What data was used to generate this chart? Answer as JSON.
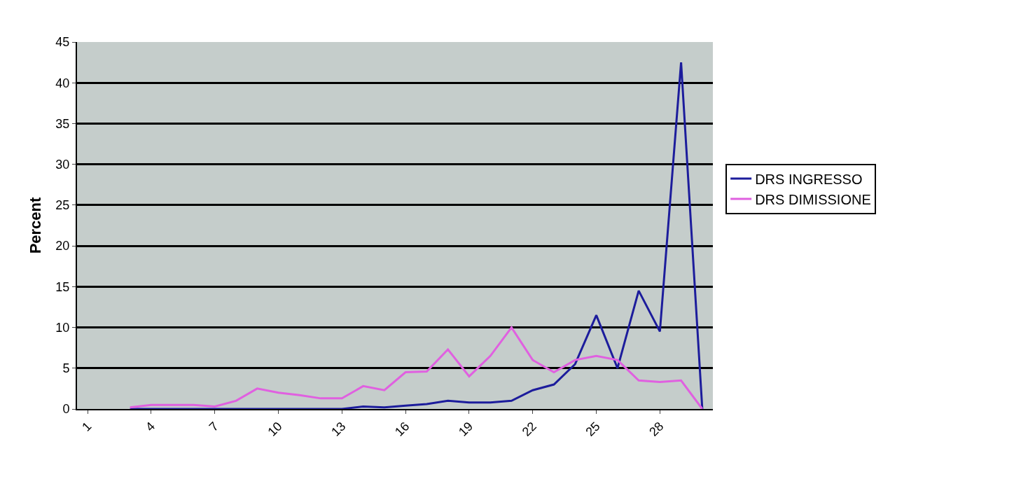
{
  "chart_data": {
    "type": "line",
    "ylabel": "Percent",
    "categories": [
      "1",
      null,
      null,
      "4",
      null,
      null,
      "7",
      null,
      null,
      "10",
      null,
      null,
      "13",
      null,
      null,
      "16",
      null,
      null,
      "19",
      null,
      null,
      "22",
      null,
      null,
      "25",
      null,
      null,
      "28",
      null,
      null
    ],
    "series": [
      {
        "name": "DRS INGRESSO",
        "color": "#1c1c9c",
        "values": [
          null,
          null,
          0,
          0,
          0,
          0,
          0,
          0,
          0,
          0,
          0,
          0,
          0,
          0.3,
          0.2,
          0.4,
          0.6,
          1.0,
          0.8,
          0.8,
          1.0,
          2.3,
          3.0,
          5.5,
          11.5,
          5.0,
          14.5,
          9.5,
          42.5,
          0
        ]
      },
      {
        "name": "DRS DIMISSIONE",
        "color": "#e060e0",
        "values": [
          null,
          null,
          0.2,
          0.5,
          0.5,
          0.5,
          0.3,
          1.0,
          2.5,
          2.0,
          1.7,
          1.3,
          1.3,
          2.8,
          2.3,
          4.5,
          4.6,
          7.3,
          4.0,
          6.5,
          10.0,
          6.0,
          4.5,
          6.0,
          6.5,
          6.0,
          3.5,
          3.3,
          3.5,
          0
        ]
      }
    ],
    "ylim": [
      0,
      45
    ],
    "yticks": [
      0,
      5,
      10,
      15,
      20,
      25,
      30,
      35,
      40,
      45
    ],
    "grid": "y",
    "legend": "right",
    "marker": "none",
    "line_style": "solid"
  }
}
